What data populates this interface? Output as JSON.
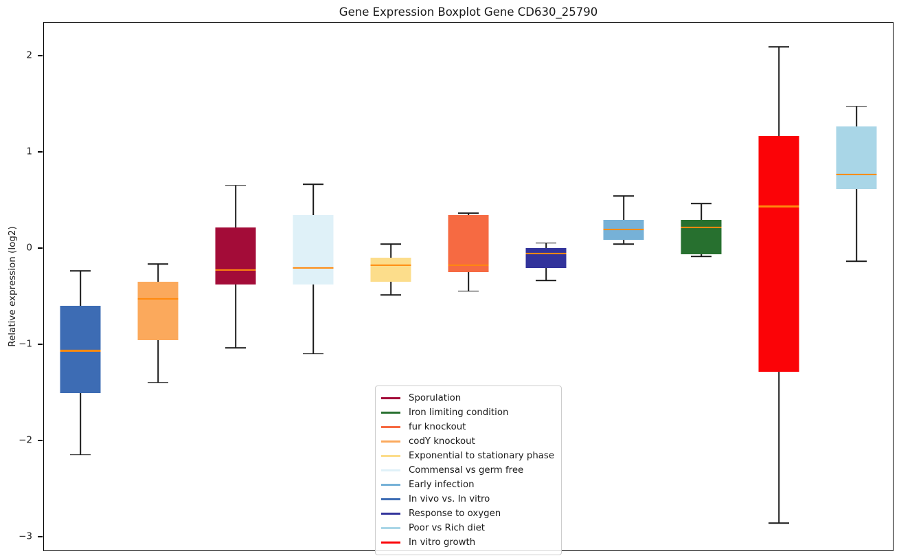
{
  "chart_data": {
    "type": "boxplot",
    "title": "Gene Expression Boxplot Gene CD630_25790",
    "ylabel": "Relative expression (log2)",
    "xlabel": "",
    "ylim": [
      -3.15,
      2.35
    ],
    "yticks": [
      2,
      1,
      0,
      -1,
      -2,
      -3
    ],
    "grid": false,
    "x_tick_labels": [],
    "median_color": "#ff8a0e",
    "whisker_color": "#1a1a1a",
    "series": [
      {
        "name": "In vivo vs. In vitro",
        "color": "#3d6cb4",
        "low": -2.14,
        "q1": -1.5,
        "median": -1.06,
        "q3": -0.59,
        "high": -0.23
      },
      {
        "name": "codY knockout",
        "color": "#fba95c",
        "low": -1.39,
        "q1": -0.95,
        "median": -0.52,
        "q3": -0.34,
        "high": -0.16
      },
      {
        "name": "Sporulation",
        "color": "#a30c38",
        "low": -1.03,
        "q1": -0.37,
        "median": -0.22,
        "q3": 0.22,
        "high": 0.66
      },
      {
        "name": "Commensal vs germ free",
        "color": "#dff1f8",
        "low": -1.09,
        "q1": -0.37,
        "median": -0.2,
        "q3": 0.35,
        "high": 0.67
      },
      {
        "name": "Exponential to stationary phase",
        "color": "#fcdd8b",
        "low": -0.48,
        "q1": -0.34,
        "median": -0.17,
        "q3": -0.09,
        "high": 0.05
      },
      {
        "name": "fur knockout",
        "color": "#f66a42",
        "low": -0.44,
        "q1": -0.24,
        "median": -0.17,
        "q3": 0.35,
        "high": 0.37
      },
      {
        "name": "Response to oxygen",
        "color": "#32339b",
        "low": -0.33,
        "q1": -0.2,
        "median": -0.05,
        "q3": 0.01,
        "high": 0.06
      },
      {
        "name": "Early infection",
        "color": "#76b1d7",
        "low": 0.05,
        "q1": 0.09,
        "median": 0.2,
        "q3": 0.3,
        "high": 0.55
      },
      {
        "name": "Iron limiting condition",
        "color": "#27702f",
        "low": -0.08,
        "q1": -0.06,
        "median": 0.22,
        "q3": 0.3,
        "high": 0.47
      },
      {
        "name": "In vitro growth",
        "color": "#fb0307",
        "low": -2.85,
        "q1": -1.28,
        "median": 0.44,
        "q3": 1.17,
        "high": 2.1
      },
      {
        "name": "Poor vs Rich diet",
        "color": "#a9d6e7",
        "low": -0.13,
        "q1": 0.62,
        "median": 0.77,
        "q3": 1.27,
        "high": 1.48
      }
    ],
    "legend": {
      "position": "lower-center-inside",
      "entries": [
        {
          "label": "Sporulation",
          "color": "#a30c38"
        },
        {
          "label": "Iron limiting condition",
          "color": "#27702f"
        },
        {
          "label": "fur knockout",
          "color": "#f66a42"
        },
        {
          "label": "codY knockout",
          "color": "#fba95c"
        },
        {
          "label": "Exponential to stationary phase",
          "color": "#fcdd8b"
        },
        {
          "label": "Commensal vs germ free",
          "color": "#dff1f8"
        },
        {
          "label": "Early infection",
          "color": "#76b1d7"
        },
        {
          "label": "In vivo vs. In vitro",
          "color": "#3d6cb4"
        },
        {
          "label": "Response to oxygen",
          "color": "#32339b"
        },
        {
          "label": "Poor vs Rich diet",
          "color": "#a9d6e7"
        },
        {
          "label": "In vitro growth",
          "color": "#fb0307"
        }
      ]
    }
  }
}
